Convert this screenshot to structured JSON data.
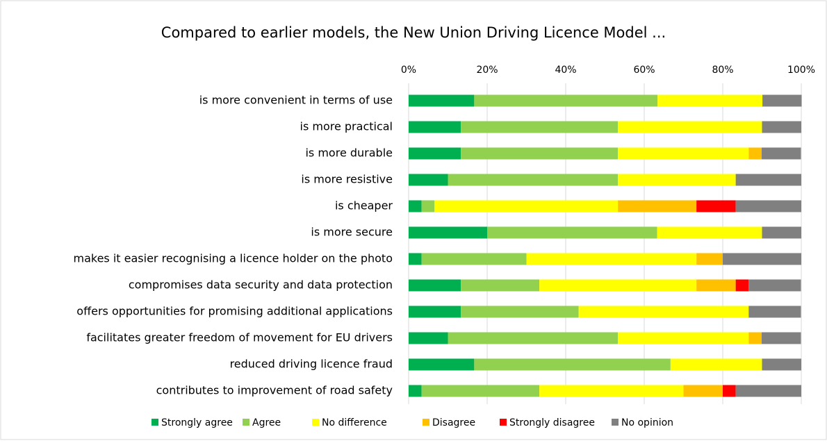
{
  "chart_data": {
    "type": "stacked-bar-horizontal",
    "title": "Compared to earlier models, the New Union Driving Licence Model ...",
    "categories": [
      "is more convenient in terms of use",
      "is more practical",
      "is more durable",
      "is more resistive",
      "is cheaper",
      "is more secure",
      "makes it easier recognising a licence holder on the photo",
      "compromises data security and data protection",
      "offers opportunities for promising additional applications",
      "facilitates greater freedom of movement for  EU drivers",
      "reduced driving licence fraud",
      "contributes to improvement of road safety"
    ],
    "series": [
      {
        "name": "Strongly agree",
        "color": "#00b050",
        "values": [
          16.7,
          13.3,
          13.3,
          10,
          3.3,
          20,
          3.3,
          13.3,
          13.3,
          10,
          16.7,
          3.3
        ]
      },
      {
        "name": "Agree",
        "color": "#92d050",
        "values": [
          46.7,
          40,
          40,
          43.3,
          3.3,
          43.3,
          26.7,
          20,
          30,
          43.3,
          50,
          30
        ]
      },
      {
        "name": "No difference",
        "color": "#ffff00",
        "values": [
          26.7,
          36.7,
          33.3,
          30,
          46.7,
          26.7,
          43.3,
          40,
          43.3,
          33.3,
          23.3,
          36.7
        ]
      },
      {
        "name": "Disagree",
        "color": "#ffc000",
        "values": [
          0,
          0,
          3.3,
          0,
          20,
          0,
          6.7,
          10,
          0,
          3.3,
          0,
          10
        ]
      },
      {
        "name": "Strongly disagree",
        "color": "#ff0000",
        "values": [
          0,
          0,
          0,
          0,
          10,
          0,
          0,
          3.3,
          0,
          0,
          0,
          3.3
        ]
      },
      {
        "name": "No opinion",
        "color": "#808080",
        "values": [
          10,
          10,
          10,
          16.7,
          16.7,
          10,
          20,
          13.3,
          13.3,
          10,
          10,
          16.7
        ]
      }
    ],
    "xlim": [
      0,
      100
    ],
    "xticks": [
      {
        "value": 0,
        "label": "0%"
      },
      {
        "value": 20,
        "label": "20%"
      },
      {
        "value": 40,
        "label": "40%"
      },
      {
        "value": 60,
        "label": "60%"
      },
      {
        "value": 80,
        "label": "80%"
      },
      {
        "value": 100,
        "label": "100%"
      }
    ],
    "grid": true,
    "legend": "bottom"
  }
}
